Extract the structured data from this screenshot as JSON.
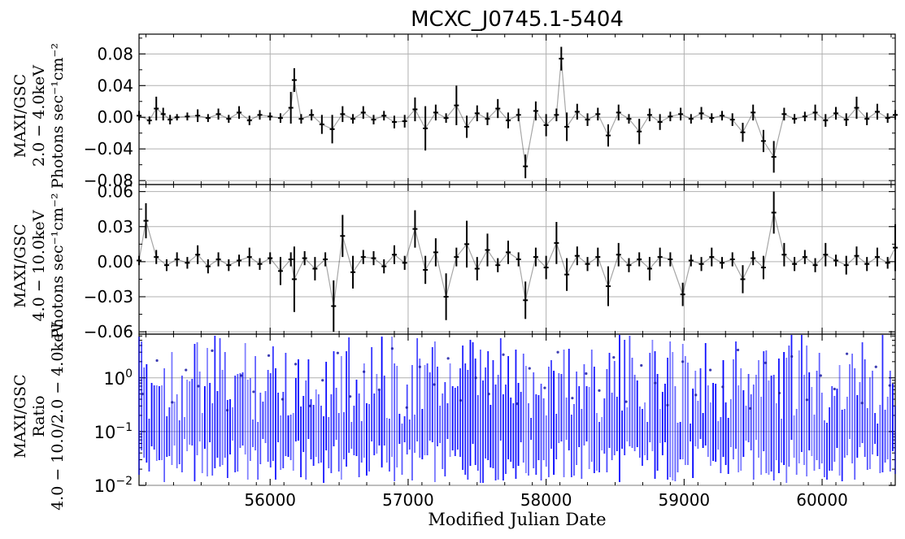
{
  "chart_data": [
    {
      "panel": "top",
      "type": "line",
      "title": "MCXC_J0745.1-5404",
      "ylabel_lines": [
        "MAXI/GSC",
        "2.0 − 4.0keV",
        "Photons sec⁻¹cm⁻²"
      ],
      "ylim": [
        -0.085,
        0.105
      ],
      "yticks": [
        {
          "value": 0.08,
          "label": "0.08"
        },
        {
          "value": 0.04,
          "label": "0.04"
        },
        {
          "value": 0.0,
          "label": "0.00"
        },
        {
          "value": -0.04,
          "label": "−0.04"
        },
        {
          "value": -0.08,
          "label": "−0.08"
        }
      ],
      "xlim": [
        55050,
        60530
      ],
      "series": [
        {
          "color": "#000000",
          "x": [
            55050,
            55125,
            55175,
            55225,
            55275,
            55325,
            55400,
            55475,
            55550,
            55625,
            55700,
            55775,
            55850,
            55925,
            56000,
            56075,
            56150,
            56175,
            56225,
            56300,
            56375,
            56450,
            56525,
            56600,
            56675,
            56750,
            56825,
            56900,
            56975,
            57050,
            57125,
            57200,
            57275,
            57350,
            57425,
            57500,
            57575,
            57650,
            57725,
            57800,
            57850,
            57925,
            58000,
            58075,
            58110,
            58150,
            58225,
            58300,
            58375,
            58450,
            58525,
            58600,
            58675,
            58750,
            58825,
            58900,
            58975,
            59050,
            59125,
            59200,
            59275,
            59350,
            59425,
            59500,
            59575,
            59650,
            59725,
            59800,
            59875,
            59950,
            60025,
            60100,
            60175,
            60250,
            60325,
            60400,
            60475,
            60530
          ],
          "y": [
            0.002,
            -0.004,
            0.011,
            0.004,
            -0.003,
            0.0,
            0.001,
            0.002,
            -0.001,
            0.004,
            -0.002,
            0.006,
            -0.004,
            0.003,
            0.001,
            -0.001,
            0.012,
            0.047,
            -0.002,
            0.003,
            -0.009,
            -0.015,
            0.004,
            -0.002,
            0.006,
            -0.003,
            0.002,
            -0.006,
            -0.005,
            0.01,
            -0.014,
            0.006,
            -0.001,
            0.015,
            -0.012,
            0.005,
            -0.002,
            0.011,
            -0.004,
            0.003,
            -0.062,
            0.008,
            -0.01,
            0.003,
            0.074,
            -0.012,
            0.007,
            -0.003,
            0.004,
            -0.023,
            0.006,
            -0.002,
            -0.018,
            0.003,
            -0.006,
            0.001,
            0.004,
            -0.002,
            0.005,
            -0.001,
            0.002,
            -0.003,
            -0.019,
            0.006,
            -0.03,
            -0.05,
            0.004,
            -0.002,
            0.001,
            0.006,
            -0.004,
            0.005,
            -0.003,
            0.012,
            -0.002,
            0.007,
            -0.001,
            0.003
          ],
          "err": [
            0.006,
            0.005,
            0.015,
            0.008,
            0.006,
            0.004,
            0.005,
            0.008,
            0.005,
            0.007,
            0.005,
            0.008,
            0.006,
            0.006,
            0.005,
            0.006,
            0.02,
            0.015,
            0.006,
            0.007,
            0.012,
            0.018,
            0.01,
            0.006,
            0.008,
            0.006,
            0.006,
            0.008,
            0.008,
            0.015,
            0.028,
            0.01,
            0.006,
            0.025,
            0.014,
            0.01,
            0.008,
            0.012,
            0.01,
            0.008,
            0.015,
            0.012,
            0.014,
            0.008,
            0.015,
            0.018,
            0.01,
            0.008,
            0.008,
            0.014,
            0.01,
            0.006,
            0.016,
            0.008,
            0.01,
            0.006,
            0.008,
            0.006,
            0.008,
            0.006,
            0.006,
            0.008,
            0.012,
            0.01,
            0.014,
            0.02,
            0.008,
            0.006,
            0.006,
            0.01,
            0.008,
            0.008,
            0.008,
            0.014,
            0.008,
            0.01,
            0.006,
            0.006
          ]
        }
      ],
      "grid": true
    },
    {
      "panel": "middle",
      "type": "line",
      "ylabel_lines": [
        "MAXI/GSC",
        "4.0 − 10.0keV",
        "Photons sec⁻¹cm⁻²"
      ],
      "ylim": [
        -0.062,
        0.066
      ],
      "yticks": [
        {
          "value": 0.06,
          "label": "0.06"
        },
        {
          "value": 0.03,
          "label": "0.03"
        },
        {
          "value": 0.0,
          "label": "0.00"
        },
        {
          "value": -0.03,
          "label": "−0.03"
        },
        {
          "value": -0.06,
          "label": "−0.06"
        }
      ],
      "xlim": [
        55050,
        60530
      ],
      "series": [
        {
          "color": "#000000",
          "x": [
            55050,
            55100,
            55175,
            55250,
            55325,
            55400,
            55475,
            55550,
            55625,
            55700,
            55775,
            55850,
            55925,
            56000,
            56075,
            56150,
            56175,
            56250,
            56325,
            56400,
            56460,
            56525,
            56600,
            56675,
            56750,
            56825,
            56900,
            56975,
            57050,
            57125,
            57200,
            57275,
            57350,
            57425,
            57500,
            57575,
            57650,
            57725,
            57800,
            57850,
            57925,
            58000,
            58075,
            58150,
            58225,
            58300,
            58375,
            58450,
            58525,
            58600,
            58675,
            58750,
            58825,
            58900,
            58990,
            59050,
            59125,
            59200,
            59275,
            59350,
            59425,
            59500,
            59575,
            59650,
            59725,
            59800,
            59875,
            59950,
            60025,
            60100,
            60175,
            60250,
            60325,
            60400,
            60475,
            60530
          ],
          "y": [
            0.001,
            0.035,
            0.004,
            -0.003,
            0.002,
            -0.001,
            0.006,
            -0.004,
            0.002,
            -0.003,
            0.001,
            0.004,
            -0.002,
            0.003,
            -0.008,
            0.002,
            -0.015,
            0.003,
            -0.006,
            0.002,
            -0.038,
            0.022,
            -0.009,
            0.004,
            0.003,
            -0.004,
            0.006,
            -0.001,
            0.028,
            -0.007,
            0.008,
            -0.03,
            0.004,
            0.015,
            -0.006,
            0.01,
            -0.003,
            0.008,
            0.002,
            -0.033,
            0.004,
            -0.005,
            0.016,
            -0.011,
            0.005,
            -0.002,
            0.004,
            -0.021,
            0.006,
            -0.003,
            0.002,
            -0.006,
            0.004,
            0.002,
            -0.028,
            0.001,
            -0.002,
            0.004,
            -0.001,
            0.002,
            -0.015,
            0.003,
            -0.005,
            0.042,
            0.006,
            -0.002,
            0.004,
            -0.003,
            0.006,
            0.001,
            -0.003,
            0.005,
            -0.002,
            0.004,
            -0.001,
            0.012
          ],
          "err": [
            0.004,
            0.015,
            0.006,
            0.005,
            0.006,
            0.005,
            0.008,
            0.006,
            0.006,
            0.005,
            0.005,
            0.008,
            0.005,
            0.005,
            0.012,
            0.006,
            0.028,
            0.006,
            0.01,
            0.006,
            0.022,
            0.018,
            0.014,
            0.006,
            0.006,
            0.006,
            0.008,
            0.006,
            0.016,
            0.012,
            0.012,
            0.02,
            0.008,
            0.02,
            0.01,
            0.014,
            0.006,
            0.01,
            0.006,
            0.016,
            0.008,
            0.01,
            0.018,
            0.014,
            0.008,
            0.006,
            0.008,
            0.017,
            0.01,
            0.006,
            0.006,
            0.01,
            0.008,
            0.006,
            0.01,
            0.005,
            0.006,
            0.008,
            0.005,
            0.006,
            0.012,
            0.006,
            0.01,
            0.018,
            0.01,
            0.006,
            0.006,
            0.006,
            0.01,
            0.005,
            0.008,
            0.008,
            0.006,
            0.008,
            0.005,
            0.02
          ]
        }
      ],
      "grid": true
    },
    {
      "panel": "bottom",
      "type": "line",
      "xlabel": "Modified Julian Date",
      "ylabel_lines": [
        "MAXI/GSC",
        "Ratio",
        "4.0 − 10.0/2.0 − 4.0keV"
      ],
      "yscale": "log",
      "ylim": [
        0.01,
        6.5
      ],
      "yticks": [
        {
          "value": 1,
          "base": "10",
          "exp": "0"
        },
        {
          "value": 0.1,
          "base": "10",
          "exp": "−1"
        },
        {
          "value": 0.01,
          "base": "10",
          "exp": "−2"
        }
      ],
      "xlim": [
        55050,
        60530
      ],
      "xticks": [
        56000,
        57000,
        58000,
        59000,
        60000
      ],
      "series": [
        {
          "color": "#0000ff",
          "x": [
            55075,
            55180,
            55290,
            55390,
            55480,
            55580,
            55690,
            55790,
            55880,
            55990,
            56090,
            56185,
            56290,
            56380,
            56490,
            56580,
            56680,
            56790,
            56885,
            56990,
            57085,
            57190,
            57290,
            57380,
            57490,
            57585,
            57690,
            57790,
            57880,
            57990,
            58085,
            58190,
            58290,
            58385,
            58490,
            58580,
            58690,
            58790,
            58880,
            58990,
            59085,
            59190,
            59280,
            59390,
            59480,
            59590,
            59690,
            59780,
            59890,
            59990,
            60090,
            60180,
            60290,
            60390,
            60490
          ],
          "y": [
            0.5,
            2.1,
            0.35,
            1.4,
            0.7,
            3.2,
            0.25,
            1.1,
            0.55,
            2.6,
            0.4,
            1.8,
            0.3,
            0.9,
            2.9,
            0.45,
            1.3,
            0.6,
            3.5,
            0.28,
            1.6,
            0.75,
            2.3,
            0.38,
            1.0,
            0.5,
            2.7,
            0.33,
            1.5,
            0.65,
            3.0,
            0.42,
            1.2,
            0.58,
            2.4,
            0.36,
            1.7,
            0.8,
            0.31,
            2.0,
            0.48,
            1.4,
            0.68,
            3.3,
            0.27,
            1.9,
            0.52,
            2.5,
            0.39,
            1.1,
            0.62,
            2.8,
            0.34,
            1.6,
            0.72
          ]
        }
      ],
      "grid": true
    }
  ]
}
